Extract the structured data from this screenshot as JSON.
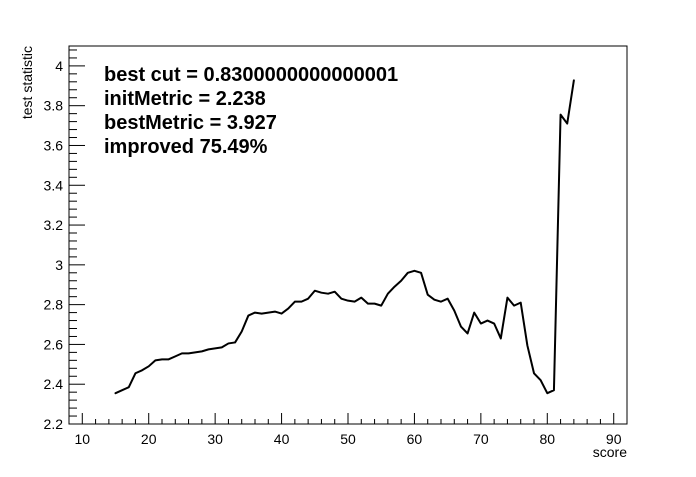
{
  "chart_data": {
    "type": "line",
    "title": "",
    "xlabel": "score",
    "ylabel": "test statistic",
    "xlim": [
      8,
      92
    ],
    "ylim": [
      2.2,
      4.1
    ],
    "xticks": [
      10,
      20,
      30,
      40,
      50,
      60,
      70,
      80,
      90
    ],
    "yticks": [
      2.2,
      2.4,
      2.6,
      2.8,
      3,
      3.2,
      3.4,
      3.6,
      3.8,
      4
    ],
    "xtick_labels": [
      "10",
      "20",
      "30",
      "40",
      "50",
      "60",
      "70",
      "80",
      "90"
    ],
    "ytick_labels": [
      "2.2",
      "2.4",
      "2.6",
      "2.8",
      "3",
      "3.2",
      "3.4",
      "3.6",
      "3.8",
      "4"
    ],
    "grid": false,
    "line_color": "#000000",
    "series": [
      {
        "x": [
          15,
          16,
          17,
          18,
          19,
          20,
          21,
          22,
          23,
          24,
          25,
          26,
          27,
          28,
          29,
          30,
          31,
          32,
          33,
          34,
          35,
          36,
          37,
          38,
          39,
          40,
          41,
          42,
          43,
          44,
          45,
          46,
          47,
          48,
          49,
          50,
          51,
          52,
          53,
          54,
          55,
          56,
          57,
          58,
          59,
          60,
          61,
          62,
          63,
          64,
          65,
          66,
          67,
          68,
          69,
          70,
          71,
          72,
          73,
          74,
          75,
          76,
          77,
          78,
          79,
          80,
          81,
          82,
          83,
          84
        ],
        "y": [
          2.355,
          2.37,
          2.385,
          2.455,
          2.47,
          2.49,
          2.52,
          2.525,
          2.525,
          2.54,
          2.555,
          2.555,
          2.56,
          2.565,
          2.575,
          2.58,
          2.585,
          2.605,
          2.61,
          2.665,
          2.745,
          2.76,
          2.755,
          2.76,
          2.765,
          2.755,
          2.78,
          2.815,
          2.815,
          2.83,
          2.87,
          2.86,
          2.855,
          2.865,
          2.83,
          2.82,
          2.815,
          2.835,
          2.805,
          2.805,
          2.795,
          2.855,
          2.89,
          2.92,
          2.96,
          2.97,
          2.96,
          2.85,
          2.825,
          2.815,
          2.83,
          2.77,
          2.69,
          2.655,
          2.76,
          2.705,
          2.72,
          2.705,
          2.63,
          2.835,
          2.795,
          2.81,
          2.595,
          2.455,
          2.42,
          2.355,
          2.37,
          3.755,
          3.71,
          3.927
        ]
      }
    ],
    "annotations": [
      "best cut = 0.8300000000000001",
      "initMetric = 2.238",
      "bestMetric = 3.927",
      "improved 75.49%"
    ]
  }
}
